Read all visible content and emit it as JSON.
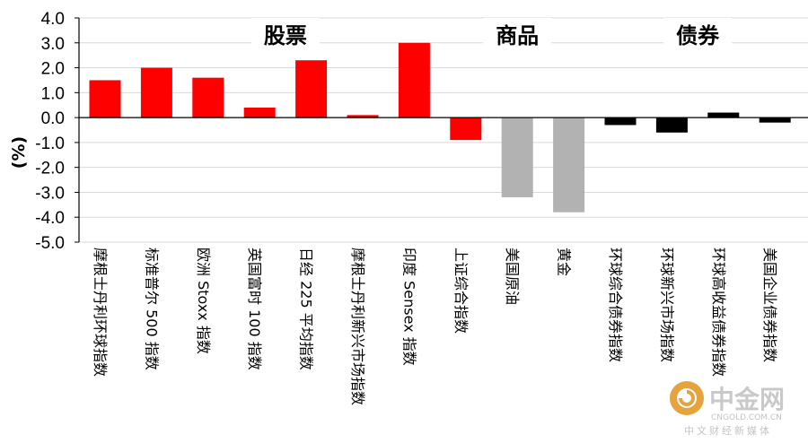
{
  "chart_data": {
    "type": "bar",
    "title": "",
    "xlabel": "",
    "ylabel": "(%)",
    "ylim": [
      -5.0,
      4.0
    ],
    "yticks": [
      "4.0",
      "3.0",
      "2.0",
      "1.0",
      "0.0",
      "-1.0",
      "-2.0",
      "-3.0",
      "-4.0",
      "-5.0"
    ],
    "grid": "horizontal",
    "categories": [
      "摩根士丹利环球指数",
      "标准普尔 500 指数",
      "欧洲 Stoxx 指数",
      "英国富时 100 指数",
      "日经 225 平均指数",
      "摩根士丹利新兴市场指数",
      "印度 Sensex 指数",
      "上证综合指数",
      "美国原油",
      "黄金",
      "环球综合债券指数",
      "环球新兴市场指数",
      "环球高收益债券指数",
      "美国企业债券指数"
    ],
    "values": [
      1.5,
      2.0,
      1.6,
      0.4,
      2.3,
      0.1,
      3.0,
      -0.9,
      -3.2,
      -3.8,
      -0.3,
      -0.6,
      0.2,
      -0.2
    ],
    "colors": [
      "#ff0000",
      "#ff0000",
      "#ff0000",
      "#ff0000",
      "#ff0000",
      "#ff0000",
      "#ff0000",
      "#ff0000",
      "#b2b2b2",
      "#b2b2b2",
      "#000000",
      "#000000",
      "#000000",
      "#000000"
    ],
    "groups": [
      {
        "label": "股票",
        "from": 0,
        "to": 7
      },
      {
        "label": "商品",
        "from": 7,
        "to": 9
      },
      {
        "label": "债券",
        "from": 10,
        "to": 13
      }
    ]
  },
  "watermark": {
    "name": "中金网",
    "domain": "CNGOLD.COM.CN",
    "slogan": "中文财经新媒体",
    "logo_color": "#e6a23c"
  }
}
